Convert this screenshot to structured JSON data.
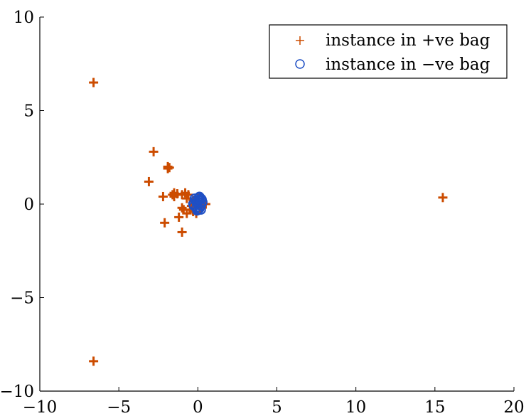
{
  "chart_data": {
    "type": "scatter",
    "xlim": [
      -10,
      20
    ],
    "ylim": [
      -10,
      10
    ],
    "x_ticks": [
      -10,
      -5,
      0,
      5,
      10,
      15,
      20
    ],
    "y_ticks": [
      -10,
      -5,
      0,
      5,
      10
    ],
    "x_tick_labels": [
      "−10",
      "−5",
      "0",
      "5",
      "10",
      "15",
      "20"
    ],
    "y_tick_labels": [
      "−10",
      "−5",
      "0",
      "5",
      "10"
    ],
    "grid": false,
    "legend_position": "top-right",
    "series": [
      {
        "name": "instance in +ve bag",
        "marker": "plus",
        "color": "#cc4c00",
        "points": [
          [
            -6.6,
            6.5
          ],
          [
            -6.6,
            -8.4
          ],
          [
            -2.8,
            2.8
          ],
          [
            -1.9,
            1.9
          ],
          [
            -1.9,
            2.0
          ],
          [
            -1.8,
            1.95
          ],
          [
            -3.1,
            1.2
          ],
          [
            -2.2,
            0.4
          ],
          [
            -1.6,
            0.5
          ],
          [
            -1.5,
            0.6
          ],
          [
            -1.5,
            0.4
          ],
          [
            -1.3,
            0.55
          ],
          [
            -1.0,
            0.5
          ],
          [
            -0.8,
            0.6
          ],
          [
            -0.7,
            0.3
          ],
          [
            -0.6,
            0.5
          ],
          [
            -0.9,
            -0.3
          ],
          [
            -1.0,
            -0.2
          ],
          [
            -0.5,
            -0.3
          ],
          [
            -0.4,
            -0.1
          ],
          [
            -0.3,
            0.2
          ],
          [
            -0.2,
            0.1
          ],
          [
            -1.2,
            -0.7
          ],
          [
            -2.1,
            -1.0
          ],
          [
            -1.0,
            -1.5
          ],
          [
            -0.7,
            -0.5
          ],
          [
            -0.3,
            -0.4
          ],
          [
            0.1,
            -0.2
          ],
          [
            0.3,
            0.1
          ],
          [
            0.5,
            0.0
          ],
          [
            0.0,
            0.3
          ],
          [
            -0.1,
            -0.5
          ],
          [
            15.5,
            0.35
          ]
        ]
      },
      {
        "name": "instance in −ve bag",
        "marker": "circle",
        "color": "#1f4fc4",
        "points": [
          [
            0.0,
            0.0
          ],
          [
            0.1,
            0.2
          ],
          [
            -0.1,
            0.1
          ],
          [
            0.2,
            -0.1
          ],
          [
            0.1,
            0.4
          ],
          [
            -0.2,
            0.3
          ],
          [
            0.0,
            -0.3
          ],
          [
            0.2,
            0.3
          ],
          [
            -0.1,
            -0.2
          ],
          [
            0.15,
            0.05
          ],
          [
            -0.25,
            -0.1
          ],
          [
            0.25,
            0.25
          ],
          [
            0.05,
            0.35
          ],
          [
            -0.05,
            -0.35
          ],
          [
            -0.3,
            0.0
          ],
          [
            0.3,
            0.1
          ],
          [
            0.1,
            -0.25
          ],
          [
            -0.15,
            0.2
          ],
          [
            0.0,
            0.15
          ],
          [
            0.2,
            -0.3
          ]
        ]
      }
    ]
  }
}
